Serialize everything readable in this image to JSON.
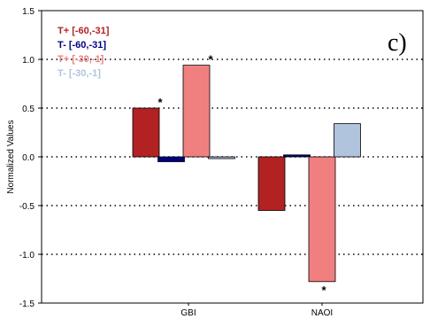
{
  "panel_label": "c)",
  "chart_data": {
    "type": "bar",
    "categories": [
      "GBI",
      "NAOI"
    ],
    "ylabel": "Normalized Values",
    "xlabel": "",
    "ylim": [
      -1.5,
      1.5
    ],
    "yticks": [
      "1.5",
      "1.0",
      "0.5",
      "0.0",
      "-0.5",
      "-1.0",
      "-1.5"
    ],
    "ytick_values": [
      1.5,
      1.0,
      0.5,
      0.0,
      -0.5,
      -1.0,
      -1.5
    ],
    "grid": "horizontal dotted",
    "legend_position": "top-left",
    "series": [
      {
        "name": "T+ [-60,-31]",
        "color": "#b22222",
        "values": [
          0.5,
          -0.55
        ],
        "significant": [
          true,
          false
        ]
      },
      {
        "name": "T-  [-60,-31]",
        "color": "#000080",
        "values": [
          -0.05,
          0.02
        ],
        "significant": [
          false,
          false
        ]
      },
      {
        "name": "T+ [-30,-1]",
        "color": "#f08080",
        "values": [
          0.94,
          -1.28
        ],
        "significant": [
          true,
          true
        ]
      },
      {
        "name": "T-  [-30,-1]",
        "color": "#b0c4de",
        "values": [
          -0.01,
          0.34
        ],
        "significant": [
          false,
          false
        ]
      }
    ],
    "significance_marker": "*"
  }
}
